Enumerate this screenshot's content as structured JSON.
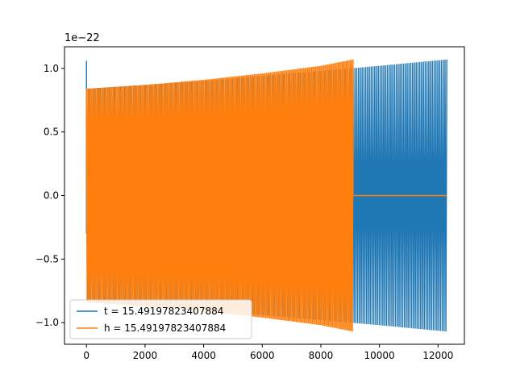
{
  "chart_data": {
    "type": "line",
    "title": "",
    "xlabel": "",
    "ylabel": "",
    "y_scale_label": "1e−22",
    "y_scale_factor": 1e-22,
    "xlim": [
      -750,
      12900
    ],
    "ylim": [
      -1.17e-22,
      1.17e-22
    ],
    "xticks": [
      0,
      2000,
      4000,
      6000,
      8000,
      10000,
      12000
    ],
    "xtick_labels": [
      "0",
      "2000",
      "4000",
      "6000",
      "8000",
      "10000",
      "12000"
    ],
    "yticks": [
      -1e-22,
      -5e-23,
      0.0,
      5e-23,
      1e-22
    ],
    "ytick_labels": [
      "−1.0",
      "−0.5",
      "0.0",
      "0.5",
      "1.0"
    ],
    "grid": false,
    "legend_position": "lower-left",
    "series": [
      {
        "name": "t = 15.49197823407884",
        "color": "#1f77b4",
        "envelope": {
          "x": [
            0,
            2000,
            4000,
            6000,
            8000,
            10000,
            12300
          ],
          "upper": [
            8.4e-23,
            8.7e-23,
            9e-23,
            9.4e-23,
            9.8e-23,
            1.02e-22,
            1.07e-22
          ],
          "lower": [
            -8.4e-23,
            -8.7e-23,
            -9e-23,
            -9.4e-23,
            -9.8e-23,
            -1.02e-22,
            -1.07e-22
          ]
        },
        "initial_spike": {
          "x": 0,
          "max": 1.06e-22,
          "min": -3e-23
        },
        "x_end": 12300,
        "cycles": 200
      },
      {
        "name": "h = 15.49197823407884",
        "color": "#ff7f0e",
        "envelope": {
          "x": [
            0,
            2000,
            4000,
            6000,
            8000,
            9100
          ],
          "upper": [
            8.4e-23,
            8.7e-23,
            9.1e-23,
            9.6e-23,
            1.02e-22,
            1.07e-22
          ],
          "lower": [
            -8.4e-23,
            -8.7e-23,
            -9.1e-23,
            -9.6e-23,
            -1.02e-22,
            -1.07e-22
          ]
        },
        "x_end": 9100,
        "flat_after": {
          "x_start": 9100,
          "x_end": 12300,
          "y": 0.0
        },
        "cycles": 200
      }
    ]
  }
}
